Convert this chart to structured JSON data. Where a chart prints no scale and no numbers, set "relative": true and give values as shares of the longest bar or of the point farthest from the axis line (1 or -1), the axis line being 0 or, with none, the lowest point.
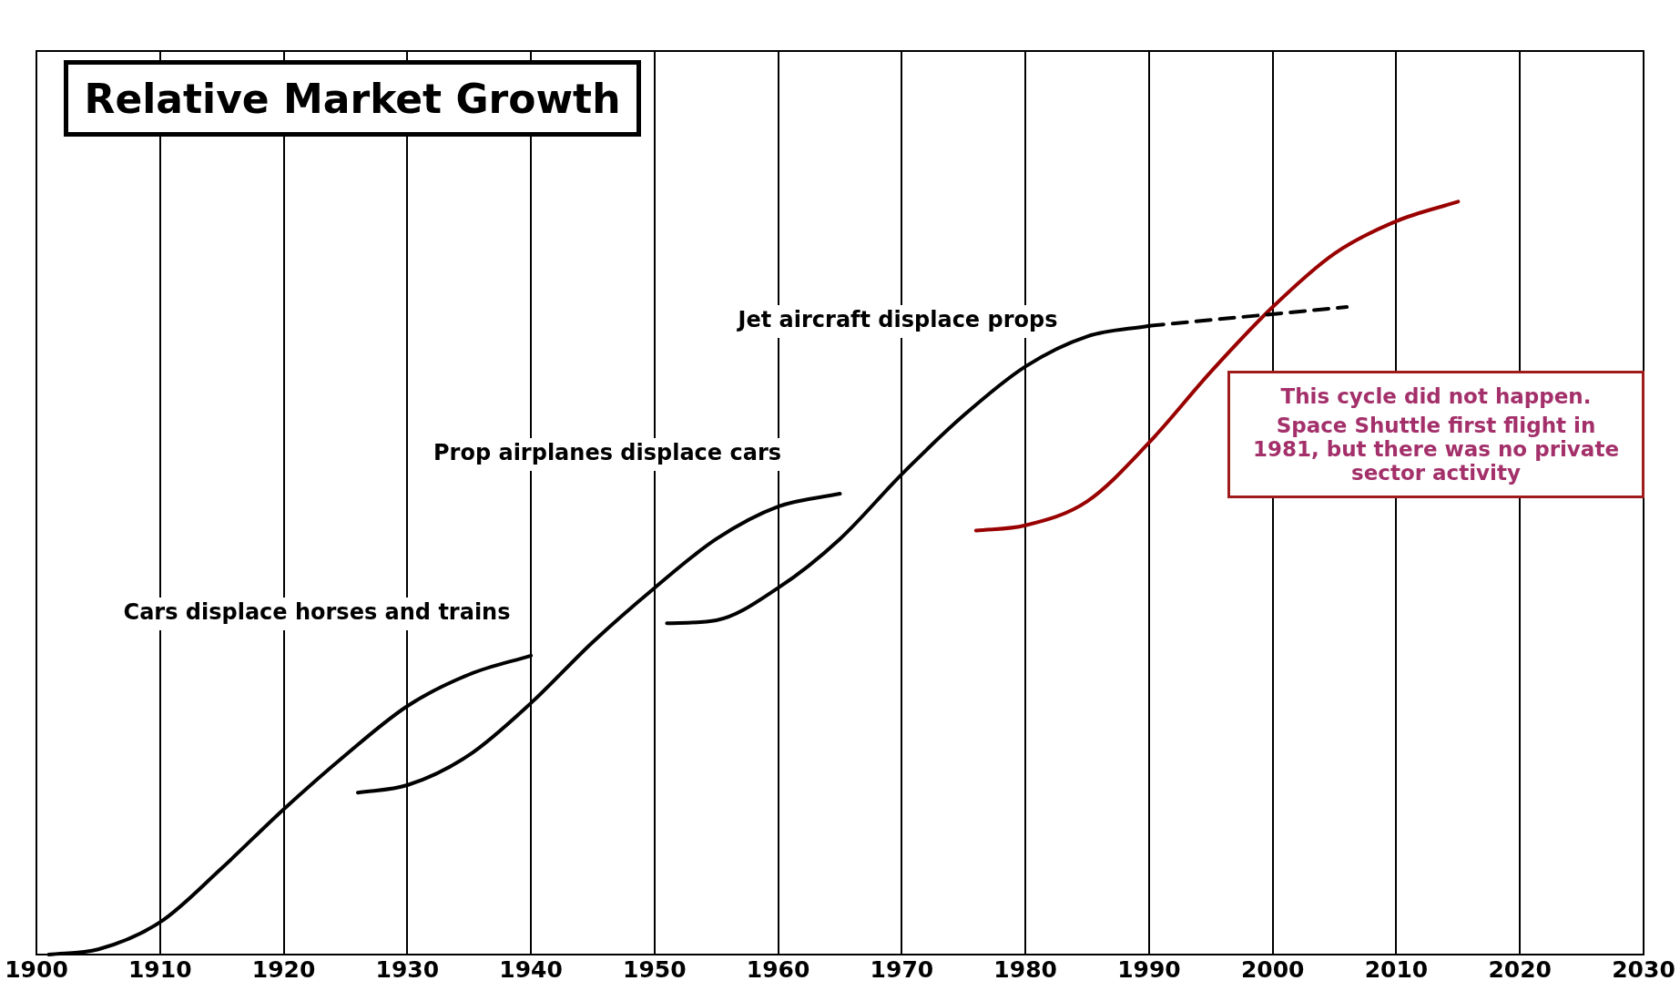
{
  "chart_data": {
    "type": "line",
    "title": "Relative Market Growth",
    "relative": true,
    "xlim": [
      1900,
      2030
    ],
    "xticks": [
      1900,
      1910,
      1920,
      1930,
      1940,
      1950,
      1960,
      1970,
      1980,
      1990,
      2000,
      2010,
      2020,
      2030
    ],
    "grid": "x",
    "legend": false,
    "marker": "none",
    "series": [
      {
        "color": "#000000",
        "line_style": "solid",
        "x": [
          1901,
          1905,
          1910,
          1915,
          1920,
          1925,
          1930,
          1935,
          1940
        ],
        "values": [
          0,
          0.007,
          0.043,
          0.115,
          0.193,
          0.265,
          0.33,
          0.372,
          0.397
        ]
      },
      {
        "color": "#000000",
        "line_style": "solid",
        "x": [
          1926,
          1930,
          1935,
          1940,
          1945,
          1950,
          1955,
          1960,
          1965
        ],
        "values": [
          0.215,
          0.225,
          0.265,
          0.334,
          0.415,
          0.487,
          0.552,
          0.595,
          0.612
        ]
      },
      {
        "color": "#000000",
        "line_style": "solid",
        "x": [
          1951,
          1955,
          1960,
          1965,
          1970,
          1975,
          1980,
          1985,
          1990
        ],
        "values": [
          0.44,
          0.444,
          0.487,
          0.552,
          0.638,
          0.716,
          0.781,
          0.821,
          0.835
        ]
      },
      {
        "color": "#000000",
        "line_style": "dashed",
        "x": [
          1990,
          2006
        ],
        "values": [
          0.835,
          0.86
        ]
      },
      {
        "color": "#990000",
        "line_style": "solid",
        "x": [
          1976,
          1980,
          1985,
          1990,
          1995,
          2000,
          2005,
          2010,
          2015
        ],
        "values": [
          0.563,
          0.57,
          0.602,
          0.68,
          0.774,
          0.86,
          0.931,
          0.974,
          1
        ]
      }
    ],
    "annotations": [
      "Cars displace horses and trains",
      "Prop airplanes displace cars",
      "Jet aircraft displace props",
      "This cycle did not happen.",
      "Space Shuttle first flight in 1981, but there was no private sector activity"
    ]
  }
}
